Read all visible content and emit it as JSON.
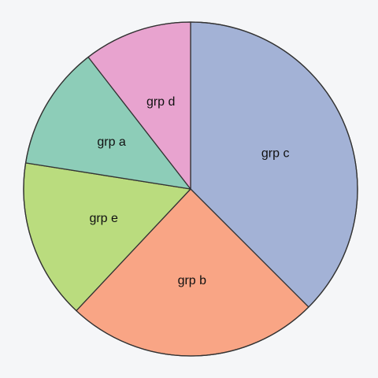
{
  "chart_data": {
    "type": "pie",
    "title": "",
    "start_angle_deg": 0,
    "direction": "clockwise",
    "legend": "none",
    "slices": [
      {
        "label": "grp c",
        "value": 37.5,
        "color": "#a3b2d6"
      },
      {
        "label": "grp b",
        "value": 24.5,
        "color": "#f9a585"
      },
      {
        "label": "grp e",
        "value": 15.5,
        "color": "#badc7e"
      },
      {
        "label": "grp a",
        "value": 12.0,
        "color": "#8dcdb8"
      },
      {
        "label": "grp d",
        "value": 10.5,
        "color": "#e8a3cf"
      }
    ]
  }
}
